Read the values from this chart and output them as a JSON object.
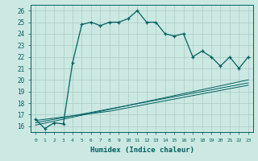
{
  "xlabel": "Humidex (Indice chaleur)",
  "background_color": "#cce8e2",
  "grid_color": "#aaccc6",
  "line_color": "#006060",
  "x_data": [
    0,
    1,
    2,
    3,
    4,
    5,
    6,
    7,
    8,
    9,
    10,
    11,
    12,
    13,
    14,
    15,
    16,
    17,
    18,
    19,
    20,
    21,
    22,
    23
  ],
  "y_main": [
    16.6,
    15.8,
    16.3,
    16.2,
    21.5,
    24.8,
    25.0,
    24.7,
    25.0,
    25.0,
    25.3,
    26.0,
    25.0,
    25.0,
    24.0,
    23.8,
    24.0,
    22.0,
    22.5,
    22.0,
    21.2,
    22.0,
    21.0,
    22.0
  ],
  "y_line1": [
    16.5,
    16.6,
    16.7,
    16.8,
    16.9,
    17.0,
    17.1,
    17.2,
    17.3,
    17.45,
    17.6,
    17.75,
    17.9,
    18.05,
    18.2,
    18.35,
    18.5,
    18.65,
    18.8,
    18.95,
    19.1,
    19.25,
    19.4,
    19.55
  ],
  "y_line2": [
    16.3,
    16.45,
    16.6,
    16.75,
    16.9,
    17.05,
    17.2,
    17.35,
    17.5,
    17.65,
    17.8,
    17.95,
    18.1,
    18.25,
    18.4,
    18.55,
    18.7,
    18.85,
    19.0,
    19.15,
    19.3,
    19.45,
    19.6,
    19.75
  ],
  "y_line3": [
    16.1,
    16.27,
    16.44,
    16.61,
    16.78,
    16.95,
    17.12,
    17.29,
    17.46,
    17.63,
    17.8,
    17.97,
    18.14,
    18.31,
    18.48,
    18.65,
    18.82,
    18.99,
    19.16,
    19.33,
    19.5,
    19.67,
    19.84,
    20.01
  ],
  "ylim": [
    15.5,
    26.5
  ],
  "xlim": [
    -0.5,
    23.5
  ],
  "yticks": [
    16,
    17,
    18,
    19,
    20,
    21,
    22,
    23,
    24,
    25,
    26
  ],
  "xticks": [
    0,
    1,
    2,
    3,
    4,
    5,
    6,
    7,
    8,
    9,
    10,
    11,
    12,
    13,
    14,
    15,
    16,
    17,
    18,
    19,
    20,
    21,
    22,
    23
  ]
}
